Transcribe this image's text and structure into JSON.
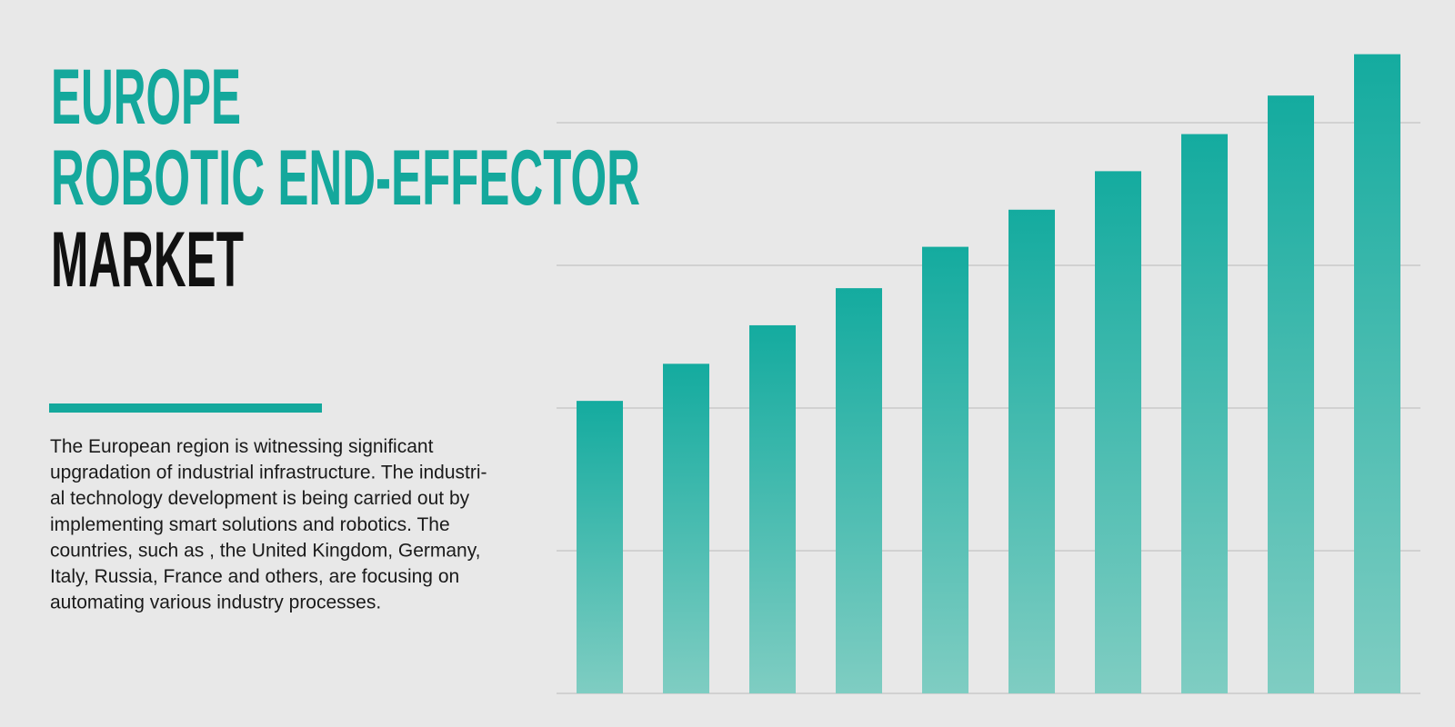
{
  "header": {
    "title_lines": [
      {
        "text": "EUROPE",
        "color": "#14a89c"
      },
      {
        "text": "ROBOTIC END-EFFECTOR",
        "color": "#14a89c"
      },
      {
        "text": "MARKET",
        "color": "#111111"
      }
    ]
  },
  "description": {
    "lines": [
      "The European region is witnessing significant",
      "upgradation of industrial infrastructure. The industri-",
      "al technology development is being carried out by",
      "implementing smart solutions and robotics. The",
      "countries, such as , the United Kingdom, Germany,",
      "Italy, Russia, France  and others, are focusing on",
      "automating various industry processes."
    ]
  },
  "chart_data": {
    "type": "bar",
    "values": [
      2.05,
      2.31,
      2.58,
      2.84,
      3.13,
      3.39,
      3.66,
      3.92,
      4.19,
      4.48
    ],
    "color": "#14ab9f",
    "ylim": [
      0,
      4.5
    ],
    "yticks": [
      0,
      1,
      2,
      3,
      4
    ],
    "grid": true
  }
}
